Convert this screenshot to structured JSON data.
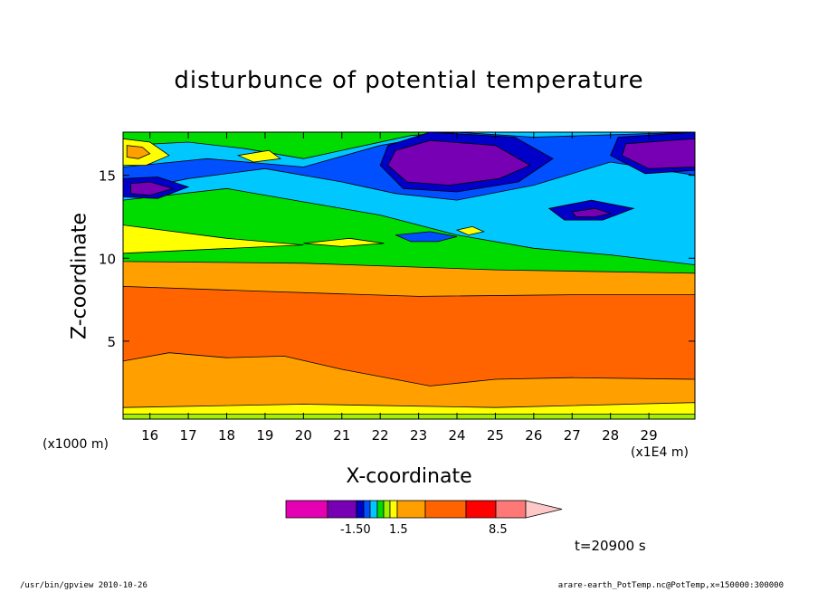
{
  "chart_data": {
    "type": "heatmap",
    "title": "disturbunce of potential temperature",
    "xlabel": "X-coordinate",
    "ylabel": "Z-coordinate",
    "x_unit_label": "(x1E4 m)",
    "z_unit_label": "(x1000 m)",
    "x_ticks": [
      16,
      17,
      18,
      19,
      20,
      21,
      22,
      23,
      24,
      25,
      26,
      27,
      28,
      29
    ],
    "y_ticks": [
      5,
      10,
      15
    ],
    "xlim": [
      15.3,
      30.2
    ],
    "ylim": [
      0.3,
      17.6
    ],
    "time_label": "t=20900 s",
    "colorbar": {
      "labels": [
        "-1.50",
        "1.5",
        "8.5"
      ],
      "colors": [
        "#e600b4",
        "#7800b4",
        "#0000c8",
        "#0050ff",
        "#00c8ff",
        "#00dc00",
        "#a0f000",
        "#ffff00",
        "#ffa000",
        "#ff6400",
        "#ff0000",
        "#ff7878",
        "#ffc8c8"
      ]
    },
    "bands": [
      {
        "color": "#ffa000",
        "points": [
          [
            15.3,
            0.3
          ],
          [
            30.2,
            0.3
          ],
          [
            30.2,
            17.6
          ],
          [
            15.3,
            17.6
          ]
        ]
      },
      {
        "color": "#ff6400",
        "points": [
          [
            15.3,
            3.8
          ],
          [
            16.5,
            4.3
          ],
          [
            18,
            4.0
          ],
          [
            19.5,
            4.1
          ],
          [
            21,
            3.3
          ],
          [
            23.3,
            2.3
          ],
          [
            25,
            2.7
          ],
          [
            27,
            2.8
          ],
          [
            30.2,
            2.7
          ],
          [
            30.2,
            7.8
          ],
          [
            27,
            7.8
          ],
          [
            23,
            7.7
          ],
          [
            19,
            8.0
          ],
          [
            15.3,
            8.3
          ]
        ]
      },
      {
        "color": "#ffff00",
        "points": [
          [
            15.3,
            0.3
          ],
          [
            30.2,
            0.3
          ],
          [
            30.2,
            1.3
          ],
          [
            25,
            1.0
          ],
          [
            20,
            1.2
          ],
          [
            15.3,
            1.0
          ]
        ]
      },
      {
        "color": "#a0f000",
        "points": [
          [
            15.3,
            0.3
          ],
          [
            30.2,
            0.3
          ],
          [
            30.2,
            0.6
          ],
          [
            15.3,
            0.6
          ]
        ]
      },
      {
        "color": "#00dc00",
        "points": [
          [
            15.3,
            9.8
          ],
          [
            20,
            9.7
          ],
          [
            25,
            9.3
          ],
          [
            30.2,
            9.1
          ],
          [
            30.2,
            17.6
          ],
          [
            15.3,
            17.6
          ]
        ]
      },
      {
        "color": "#ffff00",
        "points": [
          [
            15.3,
            12.0
          ],
          [
            18,
            11.2
          ],
          [
            20,
            10.8
          ],
          [
            15.3,
            10.3
          ]
        ]
      },
      {
        "color": "#ffff00",
        "points": [
          [
            20.0,
            10.9
          ],
          [
            21.2,
            11.2
          ],
          [
            22.1,
            10.9
          ],
          [
            21.0,
            10.7
          ]
        ]
      },
      {
        "color": "#00c8ff",
        "points": [
          [
            15.3,
            13.5
          ],
          [
            18,
            14.2
          ],
          [
            20,
            13.4
          ],
          [
            22,
            12.6
          ],
          [
            24,
            11.4
          ],
          [
            26,
            10.6
          ],
          [
            28,
            10.2
          ],
          [
            30.2,
            9.6
          ],
          [
            30.2,
            17.6
          ],
          [
            24,
            17.6
          ],
          [
            22.8,
            17.4
          ],
          [
            20,
            16.0
          ],
          [
            18.5,
            16.6
          ],
          [
            17,
            17.0
          ],
          [
            15.3,
            16.8
          ]
        ]
      },
      {
        "color": "#0050ff",
        "points": [
          [
            15.3,
            14.0
          ],
          [
            17,
            14.8
          ],
          [
            19,
            15.4
          ],
          [
            21,
            14.6
          ],
          [
            22.4,
            13.9
          ],
          [
            24,
            13.5
          ],
          [
            26,
            14.4
          ],
          [
            28,
            15.8
          ],
          [
            30.2,
            15.0
          ],
          [
            30.2,
            17.6
          ],
          [
            26,
            17.3
          ],
          [
            24,
            17.6
          ],
          [
            22,
            16.8
          ],
          [
            20,
            15.5
          ],
          [
            17.5,
            16.0
          ],
          [
            15.3,
            15.5
          ]
        ]
      },
      {
        "color": "#0000c8",
        "points": [
          [
            22.2,
            16.8
          ],
          [
            23.3,
            17.6
          ],
          [
            25.5,
            17.3
          ],
          [
            26.5,
            16.0
          ],
          [
            25.6,
            14.6
          ],
          [
            24,
            14.0
          ],
          [
            22.6,
            14.2
          ],
          [
            22.0,
            15.6
          ]
        ]
      },
      {
        "color": "#7800b4",
        "points": [
          [
            22.4,
            16.5
          ],
          [
            23.3,
            17.1
          ],
          [
            25.0,
            16.8
          ],
          [
            25.9,
            15.6
          ],
          [
            25.1,
            14.8
          ],
          [
            23.8,
            14.4
          ],
          [
            22.7,
            14.6
          ],
          [
            22.2,
            15.6
          ]
        ]
      },
      {
        "color": "#0000c8",
        "points": [
          [
            28.2,
            17.3
          ],
          [
            30.2,
            17.6
          ],
          [
            30.2,
            15.3
          ],
          [
            28.9,
            15.1
          ],
          [
            28.0,
            16.2
          ]
        ]
      },
      {
        "color": "#7800b4",
        "points": [
          [
            28.4,
            16.9
          ],
          [
            30.2,
            17.2
          ],
          [
            30.2,
            15.5
          ],
          [
            29.0,
            15.4
          ],
          [
            28.3,
            16.2
          ]
        ]
      },
      {
        "color": "#0000c8",
        "points": [
          [
            26.4,
            13.0
          ],
          [
            27.5,
            13.5
          ],
          [
            28.6,
            13.0
          ],
          [
            27.8,
            12.3
          ],
          [
            26.8,
            12.3
          ]
        ]
      },
      {
        "color": "#7800b4",
        "points": [
          [
            27.0,
            12.8
          ],
          [
            27.6,
            13.0
          ],
          [
            28.0,
            12.7
          ],
          [
            27.6,
            12.5
          ],
          [
            27.1,
            12.5
          ]
        ]
      },
      {
        "color": "#0000c8",
        "points": [
          [
            15.3,
            14.8
          ],
          [
            16.2,
            14.9
          ],
          [
            17.0,
            14.3
          ],
          [
            16.2,
            13.6
          ],
          [
            15.3,
            13.7
          ]
        ]
      },
      {
        "color": "#7800b4",
        "points": [
          [
            15.5,
            14.5
          ],
          [
            16.0,
            14.6
          ],
          [
            16.6,
            14.2
          ],
          [
            16.0,
            13.8
          ],
          [
            15.5,
            13.9
          ]
        ]
      },
      {
        "color": "#ffff00",
        "points": [
          [
            15.3,
            17.2
          ],
          [
            16.0,
            17.0
          ],
          [
            16.5,
            16.2
          ],
          [
            15.9,
            15.6
          ],
          [
            15.3,
            15.6
          ]
        ]
      },
      {
        "color": "#ffa000",
        "points": [
          [
            15.4,
            16.8
          ],
          [
            15.8,
            16.7
          ],
          [
            16.0,
            16.3
          ],
          [
            15.7,
            16.0
          ],
          [
            15.4,
            16.1
          ]
        ]
      },
      {
        "color": "#ffff00",
        "points": [
          [
            18.3,
            16.2
          ],
          [
            19.1,
            16.5
          ],
          [
            19.4,
            16.0
          ],
          [
            18.7,
            15.8
          ]
        ]
      },
      {
        "color": "#0050ff",
        "points": [
          [
            22.4,
            11.4
          ],
          [
            23.3,
            11.6
          ],
          [
            24.0,
            11.3
          ],
          [
            23.5,
            11.0
          ],
          [
            22.8,
            11.0
          ]
        ]
      },
      {
        "color": "#ffff00",
        "points": [
          [
            24.0,
            11.7
          ],
          [
            24.4,
            11.9
          ],
          [
            24.7,
            11.6
          ],
          [
            24.3,
            11.4
          ]
        ]
      }
    ]
  },
  "footer": {
    "left": "/usr/bin/gpview  2010-10-26",
    "right": "arare-earth_PotTemp.nc@PotTemp,x=150000:300000"
  }
}
